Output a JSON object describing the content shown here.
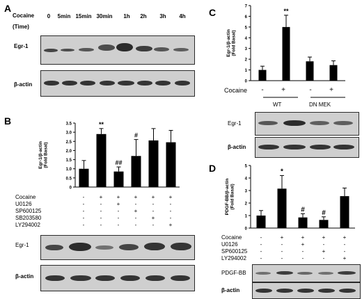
{
  "panels": {
    "A": {
      "letter": "A",
      "treatment_label": "Cocaine",
      "time_label": "(Time)",
      "timepoints": [
        "0",
        "5min",
        "15min",
        "30min",
        "1h",
        "2h",
        "3h",
        "4h"
      ],
      "blot_labels": [
        "Egr-1",
        "β-actin"
      ]
    },
    "B": {
      "letter": "B",
      "blot_labels": [
        "Egr-1",
        "β-actin"
      ],
      "treatment_rows": [
        {
          "name": "Cocaine",
          "signs": [
            "-",
            "+",
            "+",
            "+",
            "+",
            "+"
          ]
        },
        {
          "name": "U0126",
          "signs": [
            "-",
            "-",
            "+",
            "-",
            "-",
            "-"
          ]
        },
        {
          "name": "SP600125",
          "signs": [
            "-",
            "-",
            "-",
            "+",
            "-",
            "-"
          ]
        },
        {
          "name": "SB203580",
          "signs": [
            "-",
            "-",
            "-",
            "-",
            "+",
            "-"
          ]
        },
        {
          "name": "LY294002",
          "signs": [
            "-",
            "-",
            "-",
            "-",
            "-",
            "+"
          ]
        }
      ]
    },
    "C": {
      "letter": "C",
      "treatment_label": "Cocaine",
      "signs": [
        "-",
        "+",
        "-",
        "+"
      ],
      "groups": [
        "WT",
        "DN MEK"
      ],
      "blot_labels": [
        "Egr-1",
        "β-actin"
      ]
    },
    "D": {
      "letter": "D",
      "blot_labels": [
        "PDGF-BB",
        "β-actin"
      ],
      "treatment_rows": [
        {
          "name": "Cocaine",
          "signs": [
            "-",
            "+",
            "+",
            "+",
            "+"
          ]
        },
        {
          "name": "U0126",
          "signs": [
            "-",
            "-",
            "+",
            "-",
            "-"
          ]
        },
        {
          "name": "SP600125",
          "signs": [
            "-",
            "-",
            "-",
            "+",
            "-"
          ]
        },
        {
          "name": "LY294002",
          "signs": [
            "-",
            "-",
            "-",
            "-",
            "+"
          ]
        }
      ]
    }
  },
  "chart_data": [
    {
      "panel": "B",
      "type": "bar",
      "ylabel": "Egr-1/β-actin (Fold Basal)",
      "ylim": [
        0,
        3.5
      ],
      "yticks": [
        "0",
        "0.5",
        "1.0",
        "1.5",
        "2.0",
        "2.5",
        "3.0",
        "3.5"
      ],
      "values": [
        1.0,
        2.9,
        0.85,
        1.7,
        2.55,
        2.45
      ],
      "errors": [
        0.45,
        0.3,
        0.25,
        0.9,
        0.65,
        0.65
      ],
      "annotations": [
        "",
        "**",
        "##",
        "#",
        "",
        ""
      ],
      "bar_color": "#000000"
    },
    {
      "panel": "C",
      "type": "bar",
      "ylabel": "Egr-1/β-actin (Fold Basal)",
      "ylim": [
        0,
        7
      ],
      "yticks": [
        "0",
        "1",
        "2",
        "3",
        "4",
        "5",
        "6",
        "7"
      ],
      "values": [
        1.0,
        5.0,
        1.8,
        1.45
      ],
      "errors": [
        0.35,
        1.1,
        0.4,
        0.4
      ],
      "annotations": [
        "",
        "**",
        "",
        ""
      ],
      "bar_color": "#000000"
    },
    {
      "panel": "D",
      "type": "bar",
      "ylabel": "PDGF-BB/β-actin (Fold Basal)",
      "ylim": [
        0,
        5
      ],
      "yticks": [
        "0",
        "1",
        "2",
        "3",
        "4",
        "5"
      ],
      "values": [
        1.0,
        3.15,
        0.85,
        0.65,
        2.55
      ],
      "errors": [
        0.4,
        1.05,
        0.3,
        0.25,
        0.65
      ],
      "annotations": [
        "",
        "*",
        "#",
        "#",
        ""
      ],
      "bar_color": "#000000"
    }
  ]
}
